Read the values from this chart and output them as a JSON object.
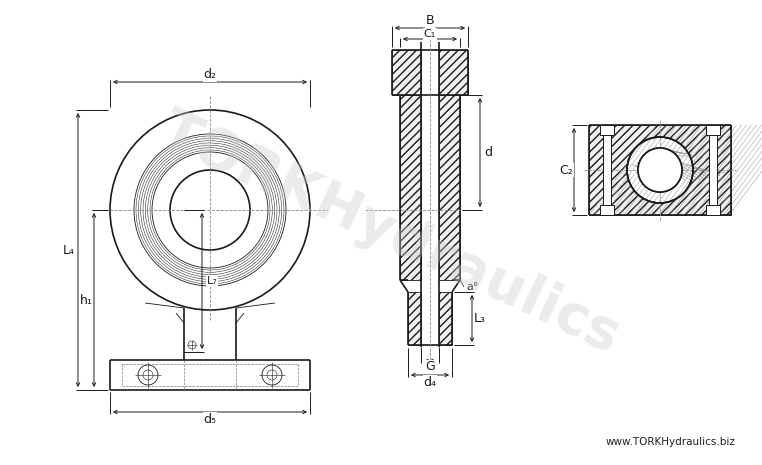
{
  "bg_color": "#ffffff",
  "line_color": "#1a1a1a",
  "dim_color": "#1a1a1a",
  "watermark_color": "#cccccc",
  "watermark_text": "TORKHydraulics",
  "website_text": "www.TORKHydraulics.biz",
  "labels": {
    "d2": "d₂",
    "d4": "d₄",
    "d5": "d₅",
    "L4": "L₄",
    "L7": "L₇",
    "h1": "h₁",
    "B": "B",
    "C1": "C₁",
    "d": "d",
    "L3": "L₃",
    "G": "G",
    "a": "a°",
    "C2": "C₂"
  },
  "figsize": [
    7.62,
    4.65
  ],
  "dpi": 100
}
